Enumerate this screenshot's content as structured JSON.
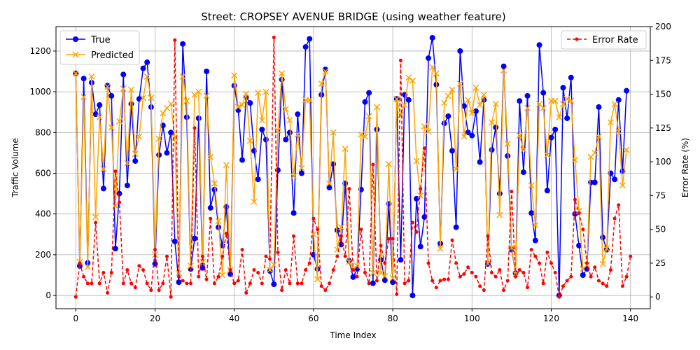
{
  "chart_data": {
    "type": "line",
    "title": "Street: CROPSEY AVENUE BRIDGE (using weather feature)",
    "xlabel": "Time Index",
    "ylabel_left": "Traffic Volume",
    "ylabel_right": "Error Rate (%)",
    "xlim": [
      -5,
      145
    ],
    "ylim_left": [
      -65,
      1320
    ],
    "ylim_right": [
      -8.7,
      200
    ],
    "x_ticks": [
      0,
      20,
      40,
      60,
      80,
      100,
      120,
      140
    ],
    "y_ticks_left": [
      0,
      200,
      400,
      600,
      800,
      1000,
      1200
    ],
    "y_ticks_right": [
      0,
      25,
      50,
      75,
      100,
      125,
      150,
      175,
      200
    ],
    "grid": true,
    "legend_left": "upper-left",
    "legend_right": "upper-right",
    "colors": {
      "true": "#0000ff",
      "predicted": "#ffa500",
      "error": "#ff0000",
      "grid": "#b0b0b0"
    },
    "series": [
      {
        "name": "True",
        "axis": "left",
        "values": [
          1090,
          145,
          1065,
          160,
          1045,
          890,
          935,
          525,
          1030,
          980,
          230,
          500,
          1085,
          540,
          940,
          660,
          965,
          1115,
          1145,
          925,
          155,
          690,
          835,
          700,
          800,
          265,
          65,
          1235,
          875,
          130,
          280,
          870,
          135,
          1100,
          430,
          520,
          335,
          245,
          435,
          105,
          1030,
          910,
          665,
          975,
          945,
          710,
          570,
          815,
          765,
          120,
          55,
          615,
          1060,
          765,
          800,
          405,
          890,
          600,
          1220,
          1260,
          200,
          130,
          985,
          1110,
          530,
          645,
          320,
          250,
          550,
          170,
          90,
          130,
          520,
          950,
          995,
          60,
          815,
          175,
          75,
          450,
          65,
          965,
          175,
          985,
          960,
          0,
          475,
          240,
          385,
          1165,
          1265,
          1035,
          255,
          845,
          880,
          710,
          335,
          1200,
          930,
          800,
          785,
          905,
          655,
          960,
          155,
          715,
          825,
          500,
          1125,
          685,
          225,
          110,
          955,
          605,
          980,
          405,
          270,
          1230,
          995,
          515,
          775,
          815,
          0,
          1020,
          870,
          1070,
          400,
          245,
          100,
          130,
          555,
          555,
          925,
          285,
          225,
          600,
          570,
          960,
          610,
          1005
        ]
      },
      {
        "name": "Predicted",
        "axis": "left",
        "values": [
          1090,
          165,
          975,
          140,
          1075,
          385,
          875,
          620,
          1025,
          825,
          440,
          855,
          1015,
          650,
          1010,
          695,
          780,
          970,
          1075,
          970,
          200,
          770,
          895,
          920,
          940,
          775,
          110,
          1075,
          955,
          145,
          985,
          1000,
          165,
          980,
          680,
          550,
          365,
          100,
          640,
          125,
          1080,
          925,
          935,
          990,
          760,
          460,
          995,
          860,
          1000,
          125,
          150,
          810,
          1090,
          915,
          860,
          585,
          790,
          625,
          960,
          960,
          300,
          80,
          1040,
          1100,
          550,
          800,
          225,
          335,
          720,
          165,
          130,
          145,
          790,
          780,
          880,
          110,
          925,
          110,
          95,
          645,
          85,
          965,
          885,
          935,
          1070,
          1055,
          660,
          490,
          830,
          805,
          1120,
          1090,
          230,
          945,
          980,
          1010,
          620,
          1040,
          780,
          960,
          895,
          1020,
          935,
          985,
          155,
          850,
          940,
          395,
          1105,
          745,
          235,
          105,
          785,
          715,
          920,
          540,
          345,
          940,
          920,
          690,
          955,
          955,
          875,
          940,
          965,
          955,
          665,
          415,
          130,
          150,
          680,
          700,
          780,
          155,
          230,
          850,
          940,
          805,
          540,
          715
        ]
      },
      {
        "name": "Error Rate",
        "axis": "right",
        "values": [
          0,
          25,
          15,
          10,
          10,
          55,
          10,
          18,
          3,
          18,
          93,
          70,
          10,
          20,
          10,
          7,
          23,
          20,
          10,
          5,
          35,
          5,
          10,
          30,
          0,
          190,
          15,
          12,
          10,
          10,
          125,
          15,
          30,
          13,
          58,
          10,
          15,
          30,
          47,
          20,
          10,
          12,
          35,
          3,
          10,
          20,
          18,
          10,
          30,
          28,
          192,
          33,
          5,
          20,
          10,
          45,
          10,
          10,
          20,
          25,
          58,
          50,
          8,
          5,
          10,
          20,
          30,
          45,
          30,
          80,
          20,
          15,
          50,
          18,
          10,
          98,
          12,
          38,
          25,
          43,
          43,
          2,
          175,
          10,
          12,
          55,
          48,
          80,
          110,
          25,
          12,
          7,
          12,
          13,
          13,
          42,
          25,
          15,
          17,
          22,
          18,
          15,
          8,
          5,
          45,
          18,
          15,
          20,
          5,
          12,
          78,
          15,
          20,
          18,
          7,
          35,
          30,
          25,
          10,
          33,
          25,
          18,
          0,
          8,
          12,
          15,
          72,
          62,
          50,
          25,
          15,
          22,
          12,
          10,
          8,
          20,
          58,
          68,
          8,
          15,
          30
        ]
      }
    ]
  }
}
